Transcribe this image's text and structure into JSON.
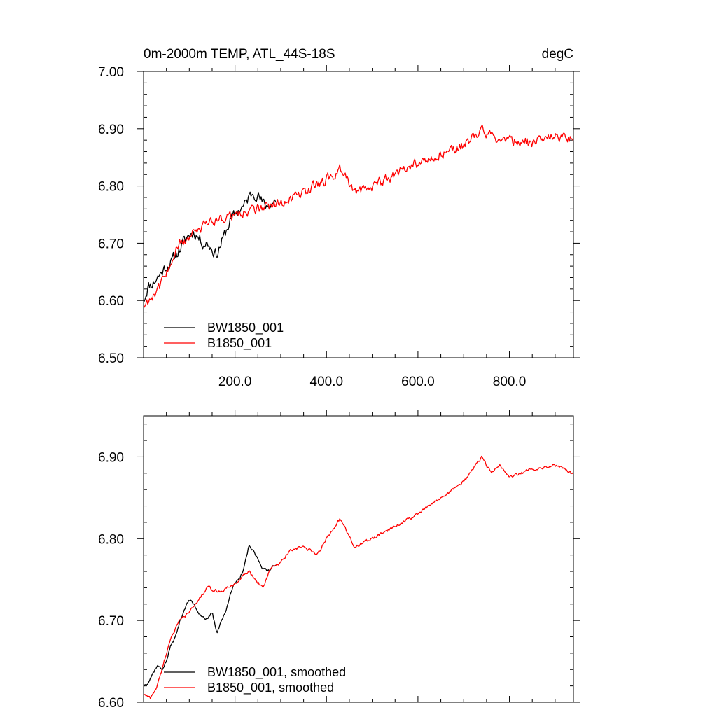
{
  "chart_data": [
    {
      "type": "line",
      "title_left": "0m-2000m TEMP, ATL_44S-18S",
      "title_right": "degC",
      "xlabel": "",
      "ylabel": "",
      "xlim": [
        0,
        940
      ],
      "ylim": [
        6.5,
        7.0
      ],
      "x_ticks": [
        200,
        400,
        600,
        800
      ],
      "x_tick_labels": [
        "200.0",
        "400.0",
        "600.0",
        "800.0"
      ],
      "y_ticks": [
        6.5,
        6.6,
        6.7,
        6.8,
        6.9,
        7.0
      ],
      "y_tick_labels": [
        "6.50",
        "6.60",
        "6.70",
        "6.80",
        "6.90",
        "7.00"
      ],
      "legend_position": "bottom-left",
      "series": [
        {
          "name": "BW1850_001",
          "color": "#000000",
          "noise": 0.016,
          "x": [
            0,
            10,
            20,
            30,
            40,
            50,
            60,
            70,
            80,
            90,
            100,
            110,
            120,
            130,
            140,
            150,
            160,
            170,
            180,
            190,
            200,
            210,
            220,
            230,
            240,
            250,
            260,
            270,
            280,
            290
          ],
          "y": [
            6.6,
            6.625,
            6.63,
            6.64,
            6.65,
            6.66,
            6.665,
            6.68,
            6.69,
            6.705,
            6.715,
            6.72,
            6.71,
            6.7,
            6.7,
            6.69,
            6.68,
            6.7,
            6.72,
            6.74,
            6.75,
            6.76,
            6.765,
            6.78,
            6.79,
            6.785,
            6.77,
            6.765,
            6.77,
            6.775
          ]
        },
        {
          "name": "B1850_001",
          "color": "#ff0000",
          "noise": 0.014,
          "x": [
            0,
            20,
            40,
            60,
            80,
            100,
            150,
            200,
            250,
            300,
            350,
            400,
            430,
            460,
            500,
            550,
            600,
            650,
            700,
            740,
            760,
            800,
            850,
            900,
            940
          ],
          "y": [
            6.59,
            6.61,
            6.63,
            6.67,
            6.7,
            6.71,
            6.74,
            6.75,
            6.76,
            6.77,
            6.79,
            6.81,
            6.83,
            6.79,
            6.8,
            6.82,
            6.84,
            6.855,
            6.87,
            6.9,
            6.885,
            6.88,
            6.875,
            6.885,
            6.88
          ]
        }
      ]
    },
    {
      "type": "line",
      "title_left": "",
      "title_right": "",
      "xlabel": "",
      "ylabel": "",
      "xlim": [
        0,
        940
      ],
      "ylim": [
        6.6,
        6.95
      ],
      "x_ticks": [
        200,
        400,
        600,
        800
      ],
      "x_tick_labels": [],
      "y_ticks": [
        6.6,
        6.7,
        6.8,
        6.9
      ],
      "y_tick_labels": [
        "6.60",
        "6.70",
        "6.80",
        "6.90"
      ],
      "legend_position": "bottom-left",
      "series": [
        {
          "name": "BW1850_001, smoothed",
          "color": "#000000",
          "noise": 0.003,
          "x": [
            0,
            10,
            20,
            30,
            40,
            50,
            60,
            70,
            80,
            90,
            100,
            110,
            120,
            130,
            140,
            150,
            160,
            170,
            180,
            190,
            200,
            210,
            220,
            230,
            240,
            250,
            260,
            270,
            280,
            290
          ],
          "y": [
            6.62,
            6.625,
            6.635,
            6.645,
            6.64,
            6.65,
            6.67,
            6.68,
            6.7,
            6.715,
            6.725,
            6.72,
            6.71,
            6.705,
            6.7,
            6.71,
            6.685,
            6.7,
            6.71,
            6.735,
            6.745,
            6.75,
            6.765,
            6.79,
            6.785,
            6.775,
            6.765,
            6.76,
            6.765,
            6.77
          ]
        },
        {
          "name": "B1850_001, smoothed",
          "color": "#ff0000",
          "noise": 0.003,
          "x": [
            0,
            15,
            30,
            45,
            60,
            80,
            100,
            140,
            170,
            200,
            230,
            260,
            280,
            300,
            320,
            350,
            380,
            400,
            430,
            460,
            500,
            550,
            600,
            650,
            700,
            740,
            760,
            780,
            800,
            850,
            900,
            940
          ],
          "y": [
            6.61,
            6.605,
            6.62,
            6.65,
            6.68,
            6.7,
            6.71,
            6.74,
            6.735,
            6.745,
            6.76,
            6.74,
            6.765,
            6.77,
            6.785,
            6.79,
            6.78,
            6.8,
            6.825,
            6.79,
            6.8,
            6.815,
            6.83,
            6.85,
            6.87,
            6.9,
            6.88,
            6.89,
            6.875,
            6.885,
            6.89,
            6.88
          ]
        }
      ]
    }
  ]
}
